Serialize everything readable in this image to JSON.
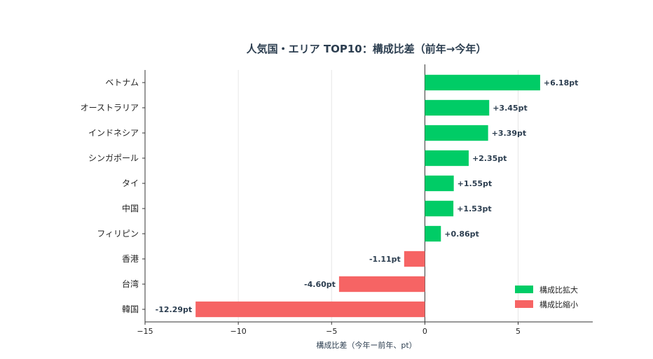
{
  "chart_data": {
    "type": "bar",
    "orientation": "horizontal",
    "title": "人気国・エリア TOP10：構成比差（前年→今年）",
    "xlabel": "構成比差（今年ー前年、pt）",
    "ylabel": "",
    "xlim": [
      -15,
      9
    ],
    "xticks": [
      -15,
      -10,
      -5,
      0,
      5
    ],
    "xtick_labels": [
      "−15",
      "−10",
      "−5",
      "0",
      "5"
    ],
    "grid": "vertical",
    "categories": [
      "ベトナム",
      "オーストラリア",
      "インドネシア",
      "シンガポール",
      "タイ",
      "中国",
      "フィリピン",
      "香港",
      "台湾",
      "韓国"
    ],
    "values": [
      6.18,
      3.45,
      3.39,
      2.35,
      1.55,
      1.53,
      0.86,
      -1.11,
      -4.6,
      -12.29
    ],
    "value_labels": [
      "+6.18pt",
      "+3.45pt",
      "+3.39pt",
      "+2.35pt",
      "+1.55pt",
      "+1.53pt",
      "+0.86pt",
      "-1.11pt",
      "-4.60pt",
      "-12.29pt"
    ],
    "colors": {
      "positive": "#00cc66",
      "negative": "#f66464"
    },
    "legend": {
      "placement": "bottom-right",
      "entries": [
        {
          "label": "構成比拡大",
          "color": "#00cc66"
        },
        {
          "label": "構成比縮小",
          "color": "#f66464"
        }
      ]
    }
  }
}
